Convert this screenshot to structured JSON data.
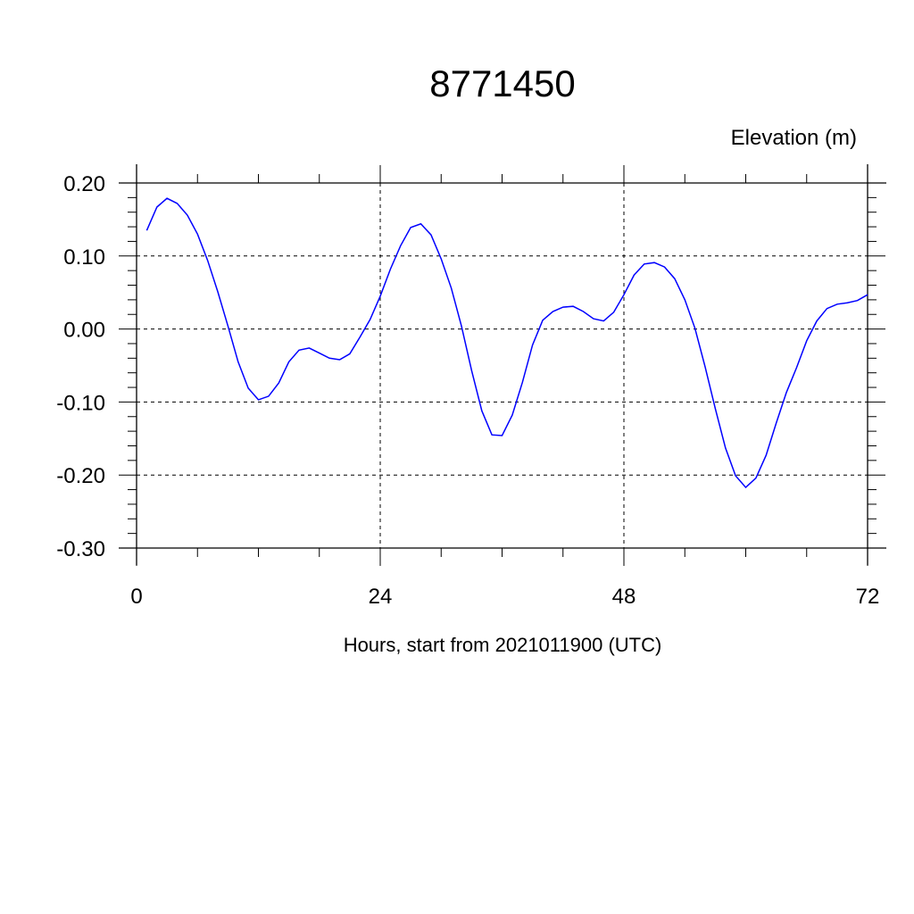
{
  "chart_data": {
    "type": "line",
    "title": "8771450",
    "ylabel": "Elevation (m)",
    "xlabel": "Hours, start from 2021011900 (UTC)",
    "xlim": [
      0,
      72
    ],
    "ylim": [
      -0.3,
      0.2
    ],
    "xticks": [
      0,
      24,
      48,
      72
    ],
    "xtick_labels": [
      "0",
      "24",
      "48",
      "72"
    ],
    "yticks": [
      0.2,
      0.1,
      0.0,
      -0.1,
      -0.2,
      -0.3
    ],
    "ytick_labels": [
      "0.20",
      "0.10",
      "0.00",
      "-0.10",
      "-0.20",
      "-0.30"
    ],
    "grid": true,
    "line_color": "#0000ff",
    "series": [
      {
        "x": [
          1,
          2,
          3,
          4,
          5,
          6,
          7,
          8,
          9,
          10,
          11,
          12,
          13,
          14,
          15,
          16,
          17,
          18,
          19,
          20,
          21,
          22,
          23,
          24,
          25,
          26,
          27,
          28,
          29,
          30,
          31,
          32,
          33,
          34,
          35,
          36,
          37,
          38,
          39,
          40,
          41,
          42,
          43,
          44,
          45,
          46,
          47,
          48,
          49,
          50,
          51,
          52,
          53,
          54,
          55,
          56,
          57,
          58,
          59,
          60,
          61,
          62,
          63,
          64,
          65,
          66,
          67,
          68,
          69,
          70,
          71,
          72
        ],
        "y": [
          0.135,
          0.167,
          0.179,
          0.172,
          0.156,
          0.13,
          0.094,
          0.051,
          0.004,
          -0.045,
          -0.081,
          -0.097,
          -0.092,
          -0.074,
          -0.045,
          -0.029,
          -0.026,
          -0.033,
          -0.04,
          -0.042,
          -0.034,
          -0.011,
          0.013,
          0.045,
          0.082,
          0.114,
          0.139,
          0.144,
          0.129,
          0.096,
          0.056,
          0.004,
          -0.057,
          -0.112,
          -0.145,
          -0.146,
          -0.118,
          -0.073,
          -0.022,
          0.012,
          0.024,
          0.03,
          0.031,
          0.024,
          0.014,
          0.011,
          0.023,
          0.047,
          0.074,
          0.089,
          0.091,
          0.085,
          0.069,
          0.04,
          0.001,
          -0.052,
          -0.109,
          -0.163,
          -0.201,
          -0.217,
          -0.204,
          -0.173,
          -0.129,
          -0.087,
          -0.053,
          -0.016,
          0.011,
          0.028,
          0.034,
          0.036,
          0.039,
          0.047
        ]
      }
    ]
  }
}
